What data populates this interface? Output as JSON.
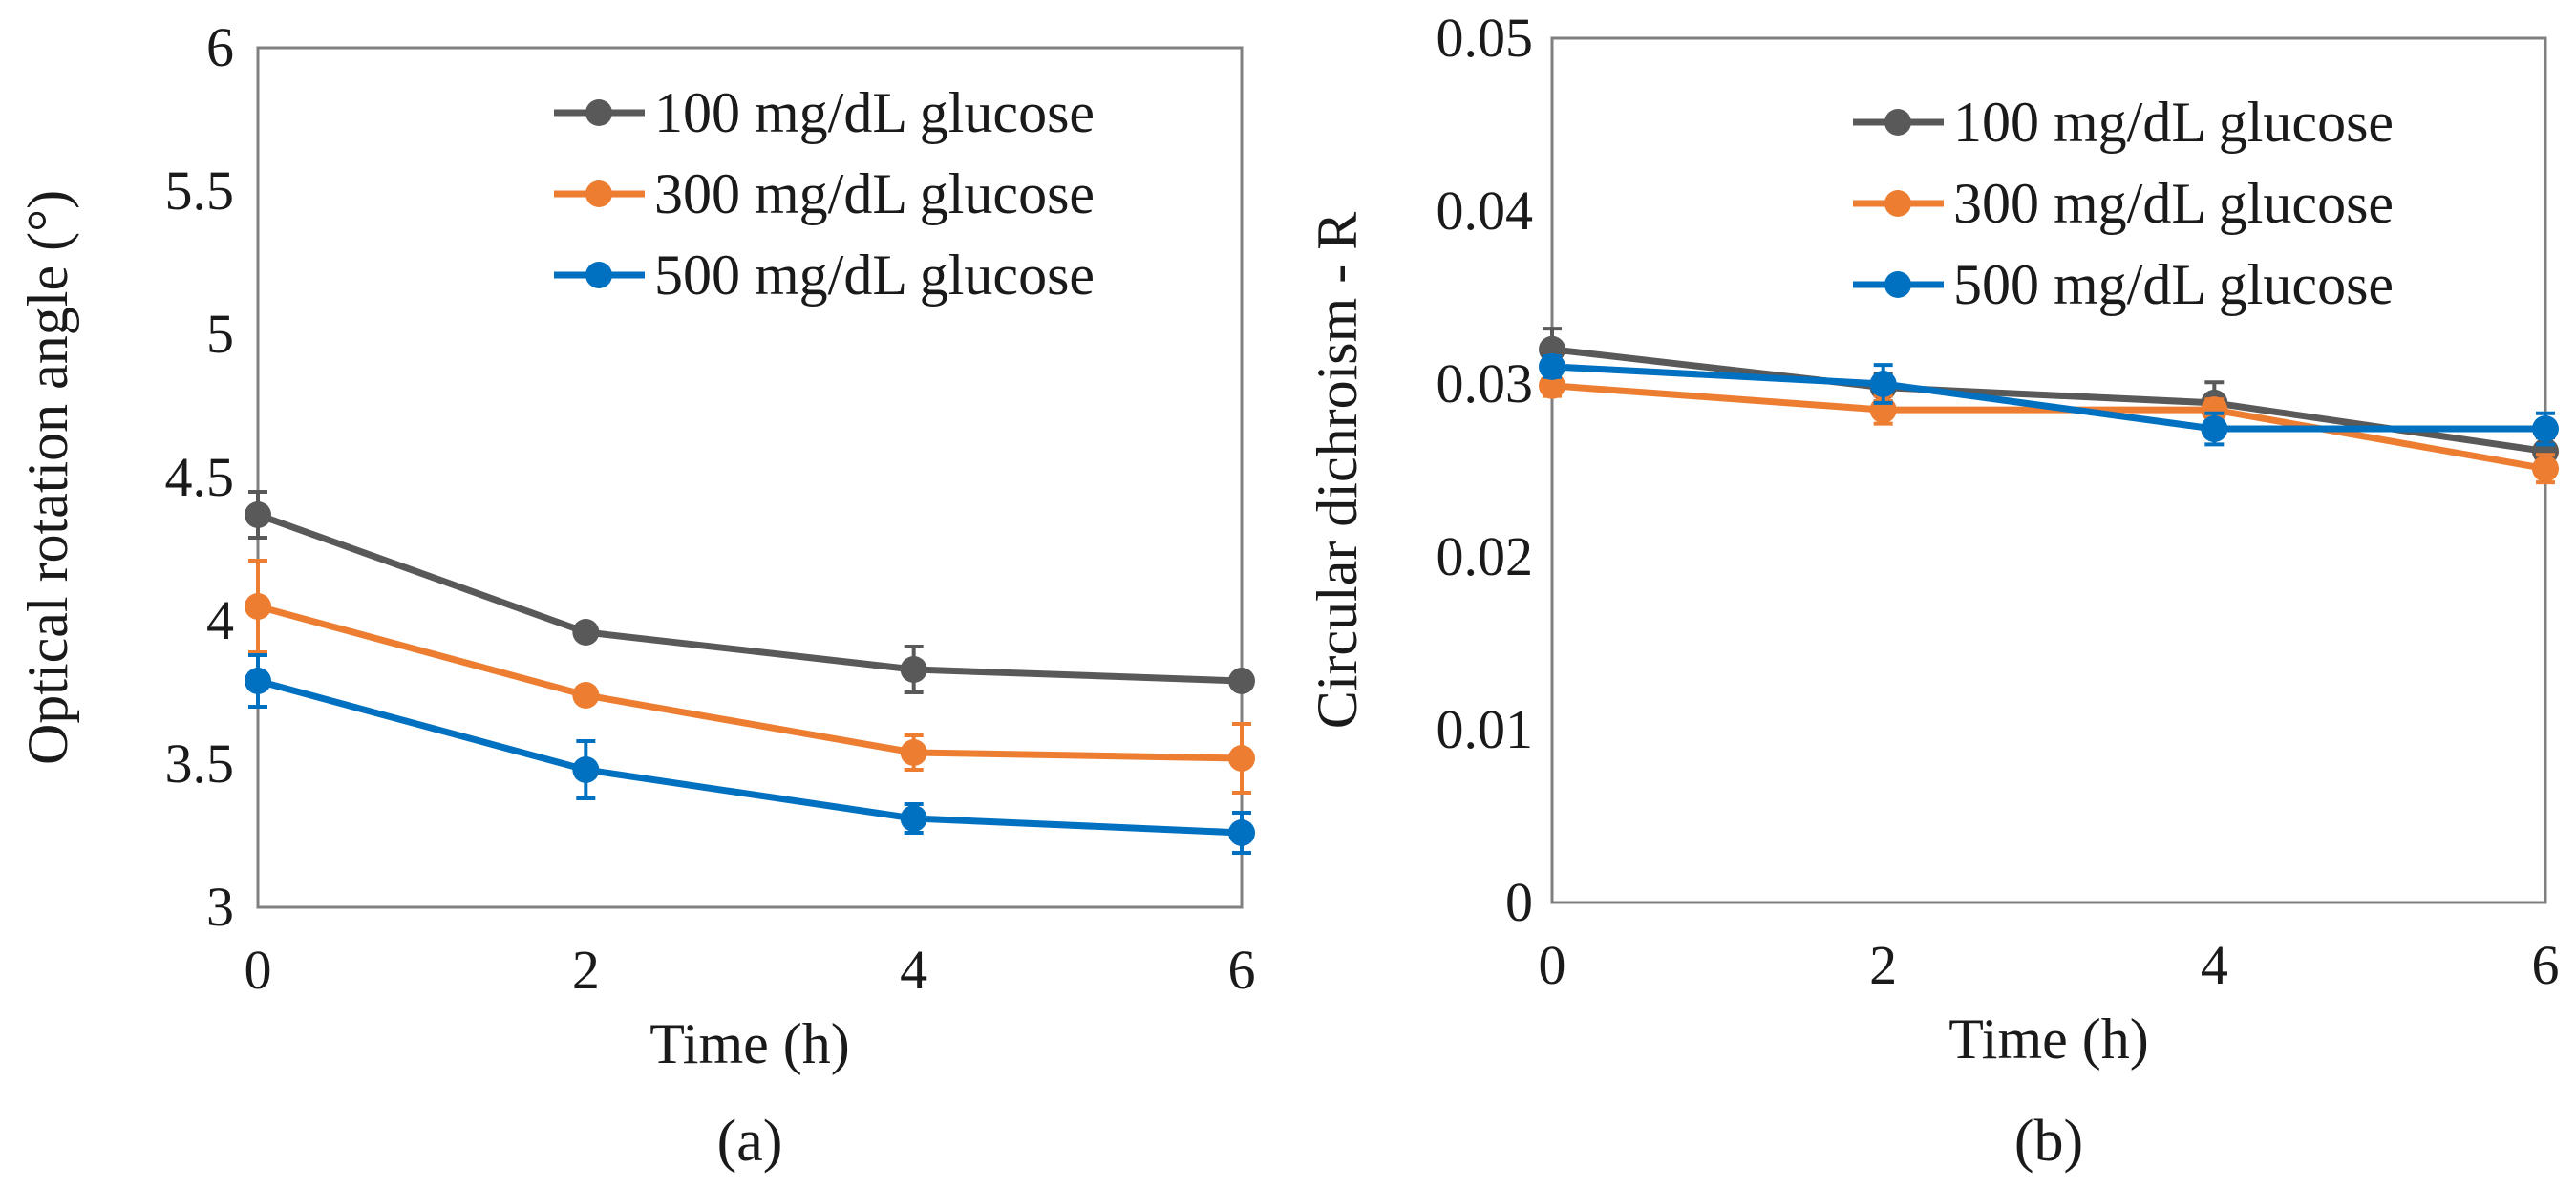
{
  "chart_data": [
    {
      "type": "line",
      "caption": "(a)",
      "title": "",
      "xlabel": "Time (h)",
      "ylabel": "Optical rotation angle (°)",
      "x": [
        0,
        2,
        4,
        6
      ],
      "xticks": [
        "0",
        "2",
        "4",
        "6"
      ],
      "xlim": [
        0,
        6
      ],
      "ylim": [
        3,
        6
      ],
      "yticks": [
        "3",
        "3.5",
        "4",
        "4.5",
        "5",
        "5.5",
        "6"
      ],
      "grid": false,
      "legend": "top-right",
      "series": [
        {
          "name": "100 mg/dL glucose",
          "color": "#595959",
          "values": [
            4.37,
            3.96,
            3.83,
            3.79
          ],
          "errors": [
            0.08,
            0.02,
            0.08,
            0.02
          ]
        },
        {
          "name": "300 mg/dL glucose",
          "color": "#ed7d31",
          "values": [
            4.05,
            3.74,
            3.54,
            3.52
          ],
          "errors": [
            0.16,
            0.02,
            0.06,
            0.12
          ]
        },
        {
          "name": "500 mg/dL glucose",
          "color": "#0070c0",
          "values": [
            3.79,
            3.48,
            3.31,
            3.26
          ],
          "errors": [
            0.09,
            0.1,
            0.05,
            0.07
          ]
        }
      ]
    },
    {
      "type": "line",
      "caption": "(b)",
      "title": "",
      "xlabel": "Time (h)",
      "ylabel": "Circular dichroism - R",
      "x": [
        0,
        2,
        4,
        6
      ],
      "xticks": [
        "0",
        "2",
        "4",
        "6"
      ],
      "xlim": [
        0,
        6
      ],
      "ylim": [
        0,
        0.05
      ],
      "yticks": [
        "0",
        "0.01",
        "0.02",
        "0.03",
        "0.04",
        "0.05"
      ],
      "grid": false,
      "legend": "top-right",
      "series": [
        {
          "name": "100 mg/dL glucose",
          "color": "#595959",
          "values": [
            0.032,
            0.0298,
            0.0289,
            0.0261
          ],
          "errors": [
            0.0012,
            0.0008,
            0.0012,
            0.0008
          ]
        },
        {
          "name": "300 mg/dL glucose",
          "color": "#ed7d31",
          "values": [
            0.0299,
            0.0285,
            0.0285,
            0.0251
          ],
          "errors": [
            0.0006,
            0.0008,
            0.0006,
            0.0008
          ]
        },
        {
          "name": "500 mg/dL glucose",
          "color": "#0070c0",
          "values": [
            0.031,
            0.03,
            0.0274,
            0.0274
          ],
          "errors": [
            0.0006,
            0.0011,
            0.0009,
            0.0009
          ]
        }
      ]
    }
  ]
}
